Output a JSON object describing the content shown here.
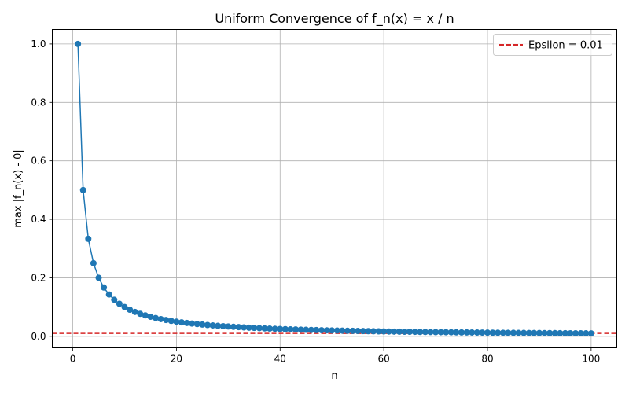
{
  "chart_data": {
    "type": "line",
    "title": "Uniform Convergence of f_n(x) = x / n",
    "xlabel": "n",
    "ylabel": "max |f_n(x) - 0|",
    "xlim": [
      -3.95,
      104.95
    ],
    "ylim": [
      -0.0395,
      1.0495
    ],
    "xticks": [
      0,
      20,
      40,
      60,
      80,
      100
    ],
    "yticks": [
      0.0,
      0.2,
      0.4,
      0.6,
      0.8,
      1.0
    ],
    "xtick_labels": [
      "0",
      "20",
      "40",
      "60",
      "80",
      "100"
    ],
    "ytick_labels": [
      "0.0",
      "0.2",
      "0.4",
      "0.6",
      "0.8",
      "1.0"
    ],
    "grid": true,
    "legend_position": "top-right",
    "series": [
      {
        "color": "#1f77b4",
        "marker": "circle",
        "x": [
          1,
          2,
          3,
          4,
          5,
          6,
          7,
          8,
          9,
          10,
          11,
          12,
          13,
          14,
          15,
          16,
          17,
          18,
          19,
          20,
          21,
          22,
          23,
          24,
          25,
          26,
          27,
          28,
          29,
          30,
          31,
          32,
          33,
          34,
          35,
          36,
          37,
          38,
          39,
          40,
          41,
          42,
          43,
          44,
          45,
          46,
          47,
          48,
          49,
          50,
          51,
          52,
          53,
          54,
          55,
          56,
          57,
          58,
          59,
          60,
          61,
          62,
          63,
          64,
          65,
          66,
          67,
          68,
          69,
          70,
          71,
          72,
          73,
          74,
          75,
          76,
          77,
          78,
          79,
          80,
          81,
          82,
          83,
          84,
          85,
          86,
          87,
          88,
          89,
          90,
          91,
          92,
          93,
          94,
          95,
          96,
          97,
          98,
          99,
          100
        ],
        "y": [
          1.0,
          0.5,
          0.3333,
          0.25,
          0.2,
          0.1667,
          0.1429,
          0.125,
          0.1111,
          0.1,
          0.0909,
          0.0833,
          0.0769,
          0.0714,
          0.0667,
          0.0625,
          0.0588,
          0.0556,
          0.0526,
          0.05,
          0.0476,
          0.0455,
          0.0435,
          0.0417,
          0.04,
          0.0385,
          0.037,
          0.0357,
          0.0345,
          0.0333,
          0.0323,
          0.0313,
          0.0303,
          0.0294,
          0.0286,
          0.0278,
          0.027,
          0.0263,
          0.0256,
          0.025,
          0.0244,
          0.0238,
          0.0233,
          0.0227,
          0.0222,
          0.0217,
          0.0213,
          0.0208,
          0.0204,
          0.02,
          0.0196,
          0.0192,
          0.0189,
          0.0185,
          0.0182,
          0.0179,
          0.0175,
          0.0172,
          0.0169,
          0.0167,
          0.0164,
          0.0161,
          0.0159,
          0.0156,
          0.0154,
          0.0152,
          0.0149,
          0.0147,
          0.0145,
          0.0143,
          0.0141,
          0.0139,
          0.0137,
          0.0135,
          0.0133,
          0.0132,
          0.013,
          0.0128,
          0.0127,
          0.0125,
          0.0123,
          0.0122,
          0.012,
          0.0119,
          0.0118,
          0.0116,
          0.0115,
          0.0114,
          0.0112,
          0.0111,
          0.011,
          0.0109,
          0.0108,
          0.0106,
          0.0105,
          0.0104,
          0.0103,
          0.0102,
          0.0101,
          0.01
        ]
      }
    ],
    "reference_lines": [
      {
        "name": "Epsilon = 0.01",
        "y": 0.01,
        "color": "#d62728",
        "style": "dashed"
      }
    ]
  }
}
